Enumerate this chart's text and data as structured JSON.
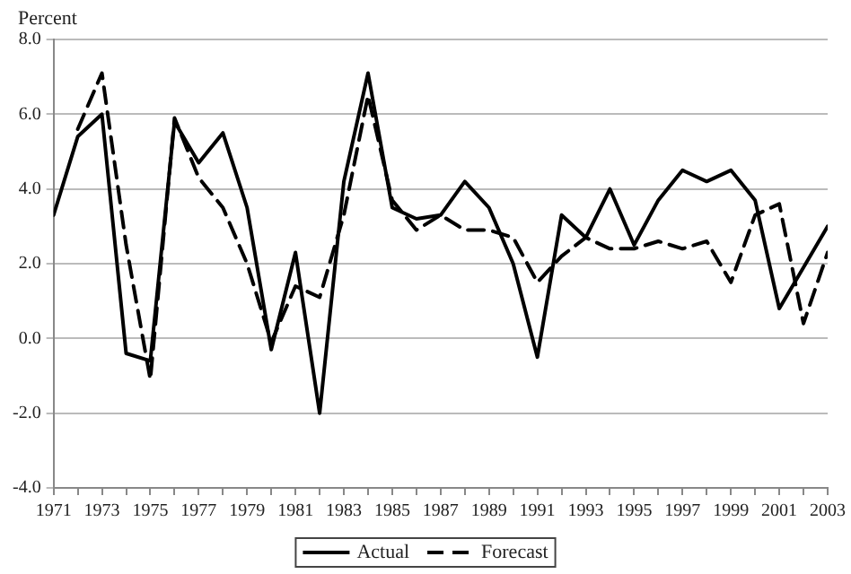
{
  "chart_data": {
    "type": "line",
    "ylabel": "Percent",
    "x": [
      1971,
      1972,
      1973,
      1974,
      1975,
      1976,
      1977,
      1978,
      1979,
      1980,
      1981,
      1982,
      1983,
      1984,
      1985,
      1986,
      1987,
      1988,
      1989,
      1990,
      1991,
      1992,
      1993,
      1994,
      1995,
      1996,
      1997,
      1998,
      1999,
      2000,
      2001,
      2002,
      2003
    ],
    "series": [
      {
        "name": "Actual",
        "color": "#000000",
        "line_style": "solid",
        "values": [
          3.3,
          5.4,
          6.0,
          -0.4,
          -0.6,
          5.8,
          4.7,
          5.5,
          3.5,
          -0.3,
          2.3,
          -2.0,
          4.2,
          7.1,
          3.5,
          3.2,
          3.3,
          4.2,
          3.5,
          2.0,
          -0.5,
          3.3,
          2.7,
          4.0,
          2.5,
          3.7,
          4.5,
          4.2,
          4.5,
          3.7,
          0.8,
          1.9,
          3.0
        ]
      },
      {
        "name": "Forecast",
        "color": "#000000",
        "line_style": "dashed",
        "values": [
          null,
          5.6,
          7.1,
          2.5,
          -1.1,
          5.9,
          4.3,
          3.5,
          2.0,
          -0.1,
          1.4,
          1.1,
          3.3,
          6.5,
          3.7,
          2.9,
          3.3,
          2.9,
          2.9,
          2.7,
          1.5,
          2.2,
          2.7,
          2.4,
          2.4,
          2.6,
          2.4,
          2.6,
          1.5,
          3.3,
          3.6,
          0.4,
          2.3
        ]
      }
    ],
    "xlim": [
      1971,
      2003
    ],
    "xticks": [
      1971,
      {
        "value": 1972,
        "label": null
      },
      1973,
      {
        "value": 1974,
        "label": null
      },
      1975,
      {
        "value": 1976,
        "label": null
      },
      1977,
      {
        "value": 1978,
        "label": null
      },
      1979,
      {
        "value": 1980,
        "label": null
      },
      1981,
      {
        "value": 1982,
        "label": null
      },
      1983,
      {
        "value": 1984,
        "label": null
      },
      1985,
      {
        "value": 1986,
        "label": null
      },
      1987,
      {
        "value": 1988,
        "label": null
      },
      1989,
      {
        "value": 1990,
        "label": null
      },
      1991,
      {
        "value": 1992,
        "label": null
      },
      1993,
      {
        "value": 1994,
        "label": null
      },
      1995,
      {
        "value": 1996,
        "label": null
      },
      1997,
      {
        "value": 1998,
        "label": null
      },
      1999,
      {
        "value": 2000,
        "label": null
      },
      2001,
      {
        "value": 2002,
        "label": null
      },
      2003
    ],
    "ylim": [
      -4,
      8
    ],
    "yticks": [
      {
        "value": -4,
        "label": "-4.0"
      },
      {
        "value": -2,
        "label": "-2.0"
      },
      {
        "value": 0,
        "label": "0.0"
      },
      {
        "value": 2,
        "label": "2.0"
      },
      {
        "value": 4,
        "label": "4.0"
      },
      {
        "value": 6,
        "label": "6.0"
      },
      {
        "value": 8,
        "label": "8.0"
      }
    ],
    "grid": "y",
    "legend": "bottom",
    "marker": "none"
  }
}
